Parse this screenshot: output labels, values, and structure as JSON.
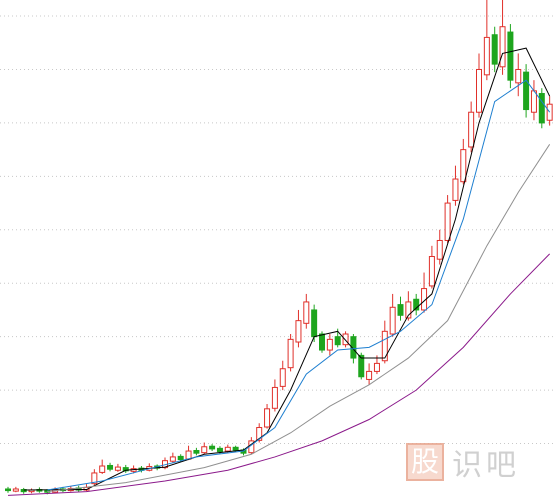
{
  "watermark": {
    "badge": "股",
    "text": "识吧"
  },
  "chart_data": {
    "type": "candlestick",
    "ylim": [
      0,
      93
    ],
    "grid_lines": [
      10,
      20,
      30,
      40,
      50,
      60,
      70,
      80,
      90
    ],
    "up_color": "#e0302a",
    "down_color": "#1ea51e",
    "grid_color": "#c8c8c8",
    "open": [
      1.5,
      1.1,
      1.4,
      1.0,
      1.4,
      1.2,
      0.9,
      1.5,
      1.2,
      1.7,
      1.3,
      2.5,
      4.6,
      5.9,
      5.0,
      5.5,
      4.8,
      5.4,
      5.0,
      5.8,
      5.5,
      6.7,
      7.6,
      7.1,
      8.7,
      8.3,
      9.5,
      9.1,
      8.6,
      9.3,
      8.8,
      8.3,
      10.6,
      13.1,
      16.6,
      20.7,
      24.2,
      29.0,
      32.5,
      35.0,
      30.5,
      27.5,
      30.0,
      28.5,
      30.0,
      26.5,
      22.0,
      23.5,
      25.5,
      30.5,
      36.0,
      33.5,
      37.0,
      35.0,
      39.5,
      44.5,
      48.0,
      55.5,
      59.0,
      65.5,
      72.0,
      79.0,
      86.5,
      80.5,
      87.0,
      77.5,
      79.5,
      72.0,
      75.5,
      70.5
    ],
    "high": [
      1.9,
      1.9,
      1.7,
      1.6,
      1.8,
      1.5,
      1.8,
      1.9,
      2.0,
      2.1,
      2.4,
      5.2,
      7.0,
      6.4,
      6.2,
      6.0,
      5.9,
      5.8,
      6.3,
      6.1,
      7.4,
      8.3,
      8.0,
      9.6,
      9.2,
      10.2,
      9.9,
      9.5,
      9.8,
      9.6,
      9.1,
      11.2,
      13.8,
      17.4,
      22.0,
      25.5,
      30.5,
      35.0,
      38.0,
      36.0,
      31.0,
      30.5,
      31.5,
      31.0,
      30.5,
      27.0,
      25.0,
      26.5,
      33.0,
      38.0,
      37.5,
      38.5,
      38.0,
      42.0,
      47.0,
      50.0,
      56.5,
      62.0,
      67.0,
      74.0,
      83.0,
      93.0,
      88.0,
      93.0,
      88.5,
      83.0,
      81.0,
      78.0,
      76.5,
      75.0
    ],
    "low": [
      0.8,
      0.9,
      0.6,
      0.7,
      0.8,
      0.5,
      0.7,
      0.9,
      1.0,
      1.0,
      1.1,
      2.2,
      4.3,
      4.8,
      4.7,
      4.5,
      4.4,
      4.6,
      4.8,
      5.0,
      5.2,
      6.4,
      6.6,
      6.9,
      7.8,
      8.0,
      8.6,
      8.1,
      8.2,
      8.4,
      7.8,
      8.0,
      10.2,
      12.8,
      16.0,
      20.0,
      23.5,
      28.0,
      31.5,
      29.0,
      27.0,
      26.5,
      28.0,
      28.0,
      25.0,
      22.0,
      21.0,
      23.0,
      25.0,
      30.0,
      33.0,
      33.0,
      34.0,
      34.5,
      39.0,
      43.5,
      47.5,
      54.5,
      58.5,
      64.5,
      71.0,
      78.0,
      79.5,
      79.0,
      76.5,
      75.0,
      71.0,
      70.5,
      69.0,
      69.5
    ],
    "close": [
      1.2,
      1.5,
      1.0,
      1.3,
      1.1,
      0.9,
      1.4,
      1.2,
      1.6,
      1.3,
      1.8,
      4.5,
      5.8,
      5.2,
      5.6,
      4.9,
      5.3,
      5.0,
      5.7,
      5.4,
      6.8,
      7.5,
      7.0,
      8.6,
      8.2,
      9.4,
      9.0,
      8.5,
      9.3,
      8.8,
      8.2,
      10.5,
      13.0,
      16.5,
      20.5,
      24.0,
      29.5,
      33.0,
      36.5,
      30.0,
      27.5,
      29.5,
      28.5,
      30.5,
      26.0,
      22.5,
      23.5,
      25.0,
      31.0,
      35.5,
      34.0,
      36.5,
      35.0,
      39.0,
      45.0,
      48.0,
      55.0,
      59.5,
      65.0,
      72.0,
      80.0,
      86.0,
      81.0,
      88.0,
      78.0,
      80.0,
      72.5,
      76.0,
      70.0,
      73.5
    ],
    "lines": [
      {
        "color": "#000000",
        "x": [
          2,
          10,
          15,
          20,
          25,
          30,
          33,
          36,
          39,
          42,
          45,
          48,
          51,
          54,
          57,
          60,
          63,
          66,
          69
        ],
        "values": [
          1.3,
          1.4,
          5.0,
          5.6,
          8.0,
          8.8,
          12,
          20,
          30,
          31,
          26,
          26,
          34,
          38,
          52,
          70,
          83,
          84,
          75
        ]
      },
      {
        "color": "#1e7fd0",
        "x": [
          5,
          12,
          18,
          24,
          30,
          34,
          38,
          42,
          46,
          50,
          54,
          58,
          62,
          66,
          69
        ],
        "values": [
          1.3,
          3,
          5.3,
          7.5,
          8.6,
          13,
          23,
          27.5,
          28,
          31,
          36,
          52,
          74,
          78,
          72
        ]
      },
      {
        "color": "#909090",
        "x": [
          5,
          15,
          25,
          31,
          36,
          41,
          46,
          51,
          56,
          61,
          65,
          69
        ],
        "values": [
          1.0,
          2.7,
          5.5,
          8,
          12,
          17,
          21,
          26,
          33,
          47,
          57,
          66
        ]
      },
      {
        "color": "#8b1a8b",
        "x": [
          0,
          10,
          20,
          28,
          34,
          40,
          46,
          52,
          58,
          64,
          69
        ],
        "values": [
          0.3,
          1.0,
          3.0,
          5.0,
          7.5,
          10.5,
          14.5,
          20,
          28,
          38,
          45.5
        ]
      }
    ]
  }
}
